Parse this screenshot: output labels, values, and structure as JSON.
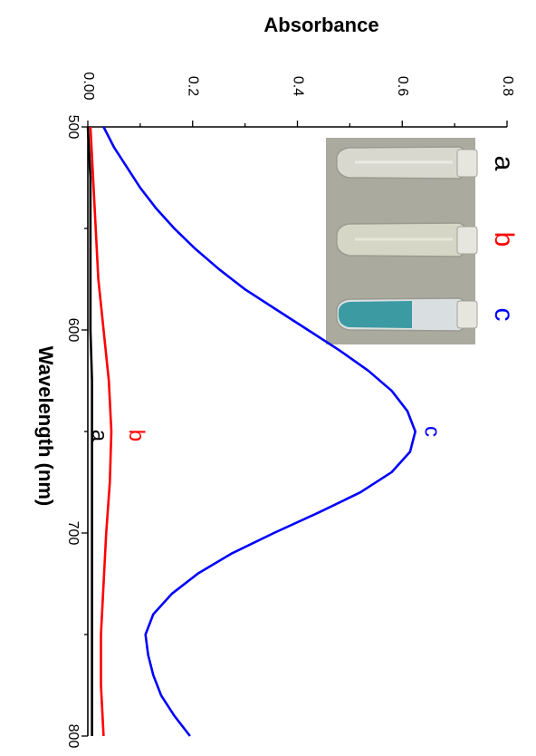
{
  "chart_data": {
    "type": "line",
    "orientation": "rotated 90 degrees clockwise",
    "xlabel": "Wavelength (nm)",
    "ylabel": "Absorbance",
    "xlim": [
      500,
      800
    ],
    "ylim": [
      0.0,
      0.8
    ],
    "x_ticks": [
      "500",
      "600",
      "700",
      "800"
    ],
    "y_ticks": [
      "0.00",
      "0.2",
      "0.4",
      "0.6",
      "0.8"
    ],
    "series": [
      {
        "name": "a",
        "color": "#000000",
        "x": [
          500,
          525,
          550,
          575,
          600,
          625,
          650,
          675,
          700,
          725,
          750,
          775,
          800
        ],
        "y": [
          0.0,
          0.005,
          0.005,
          0.005,
          0.005,
          0.008,
          0.008,
          0.008,
          0.008,
          0.008,
          0.008,
          0.008,
          0.008
        ]
      },
      {
        "name": "b",
        "color": "#ff0000",
        "x": [
          500,
          525,
          550,
          575,
          600,
          625,
          650,
          675,
          700,
          725,
          750,
          775,
          800
        ],
        "y": [
          0.005,
          0.01,
          0.015,
          0.02,
          0.03,
          0.04,
          0.045,
          0.042,
          0.035,
          0.03,
          0.025,
          0.025,
          0.03
        ]
      },
      {
        "name": "c",
        "color": "#0000ff",
        "x": [
          500,
          510,
          520,
          530,
          540,
          550,
          560,
          570,
          580,
          590,
          600,
          610,
          620,
          630,
          640,
          650,
          660,
          670,
          680,
          690,
          700,
          710,
          720,
          730,
          740,
          750,
          760,
          770,
          780,
          790,
          800
        ],
        "y": [
          0.03,
          0.05,
          0.075,
          0.1,
          0.13,
          0.165,
          0.205,
          0.25,
          0.3,
          0.36,
          0.42,
          0.48,
          0.535,
          0.58,
          0.61,
          0.625,
          0.615,
          0.58,
          0.52,
          0.44,
          0.355,
          0.275,
          0.21,
          0.16,
          0.125,
          0.11,
          0.115,
          0.125,
          0.14,
          0.165,
          0.195
        ]
      }
    ],
    "curve_labels": [
      {
        "text": "a",
        "color": "#000000",
        "x": 652,
        "y": 0.02
      },
      {
        "text": "b",
        "color": "#ff0000",
        "x": 652,
        "y": 0.09
      },
      {
        "text": "c",
        "color": "#0000ff",
        "x": 650,
        "y": 0.655
      }
    ],
    "inset": {
      "tube_labels": [
        {
          "text": "a",
          "color": "#000000"
        },
        {
          "text": "b",
          "color": "#ff0000"
        },
        {
          "text": "c",
          "color": "#0000ff"
        }
      ]
    }
  }
}
